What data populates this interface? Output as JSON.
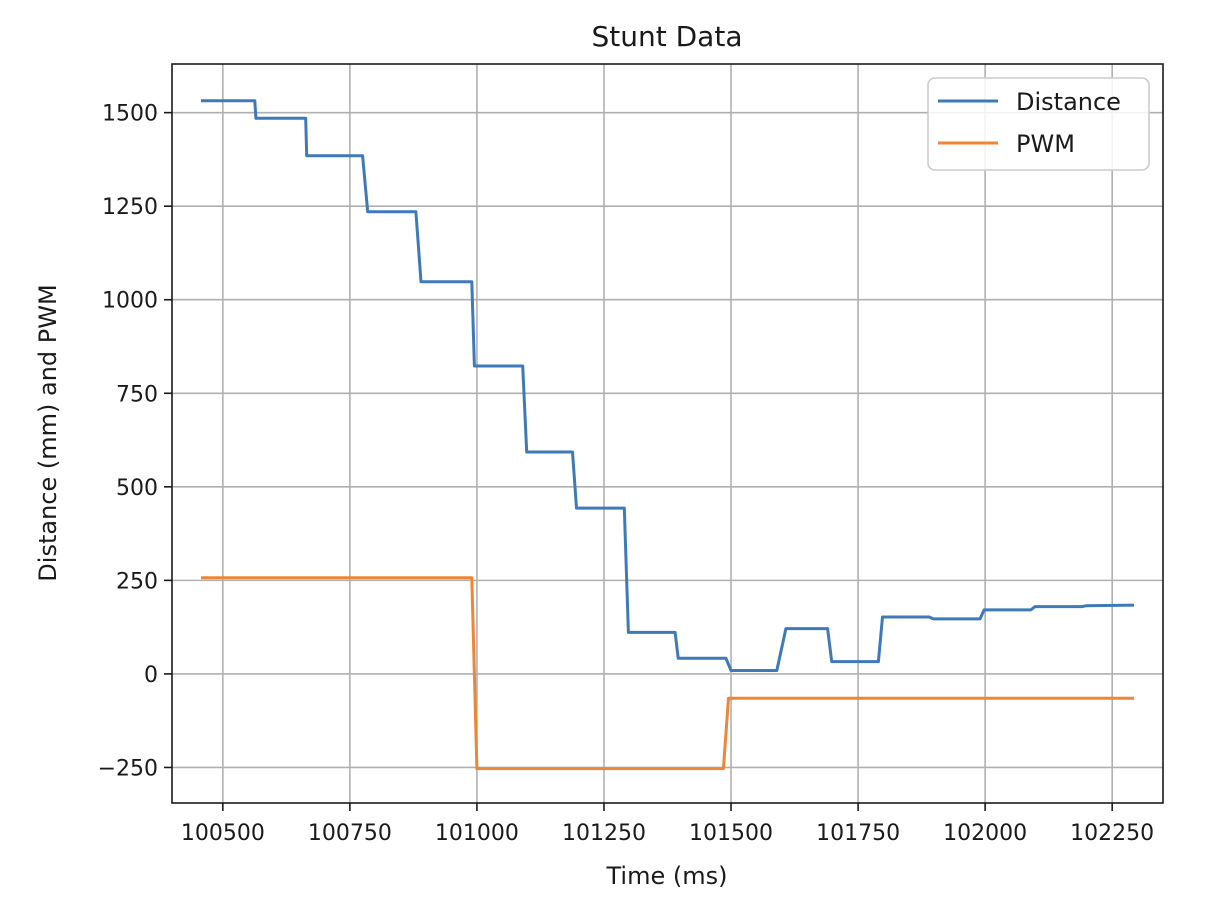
{
  "chart_data": {
    "type": "line",
    "title": "Stunt Data",
    "xlabel": "Time (ms)",
    "ylabel": "Distance (mm) and PWM",
    "xlim": [
      100400,
      102350
    ],
    "ylim": [
      -345,
      1630
    ],
    "xticks": [
      100500,
      100750,
      101000,
      101250,
      101500,
      101750,
      102000,
      102250
    ],
    "yticks": [
      -250,
      0,
      250,
      500,
      750,
      1000,
      1250,
      1500
    ],
    "grid": true,
    "legend": "top-right",
    "series": [
      {
        "name": "Distance",
        "color": "#3f7ab8",
        "x": [
          100460,
          100563,
          100565,
          100663,
          100665,
          100775,
          100785,
          100880,
          100890,
          100990,
          100995,
          101090,
          101098,
          101188,
          101196,
          101290,
          101298,
          101390,
          101396,
          101490,
          101500,
          101590,
          101608,
          101690,
          101698,
          101790,
          101798,
          101890,
          101898,
          101990,
          101998,
          102090,
          102098,
          102190,
          102198,
          102290
        ],
        "y": [
          1532,
          1532,
          1485,
          1485,
          1385,
          1385,
          1235,
          1235,
          1048,
          1048,
          823,
          823,
          593,
          593,
          443,
          443,
          111,
          111,
          42,
          42,
          9,
          9,
          121,
          121,
          33,
          33,
          152,
          152,
          147,
          147,
          171,
          171,
          180,
          180,
          182,
          184
        ]
      },
      {
        "name": "PWM",
        "color": "#ef8637",
        "x": [
          100460,
          100990,
          101000,
          101485,
          101495,
          102290
        ],
        "y": [
          257,
          257,
          -253,
          -253,
          -65,
          -65
        ]
      }
    ]
  }
}
